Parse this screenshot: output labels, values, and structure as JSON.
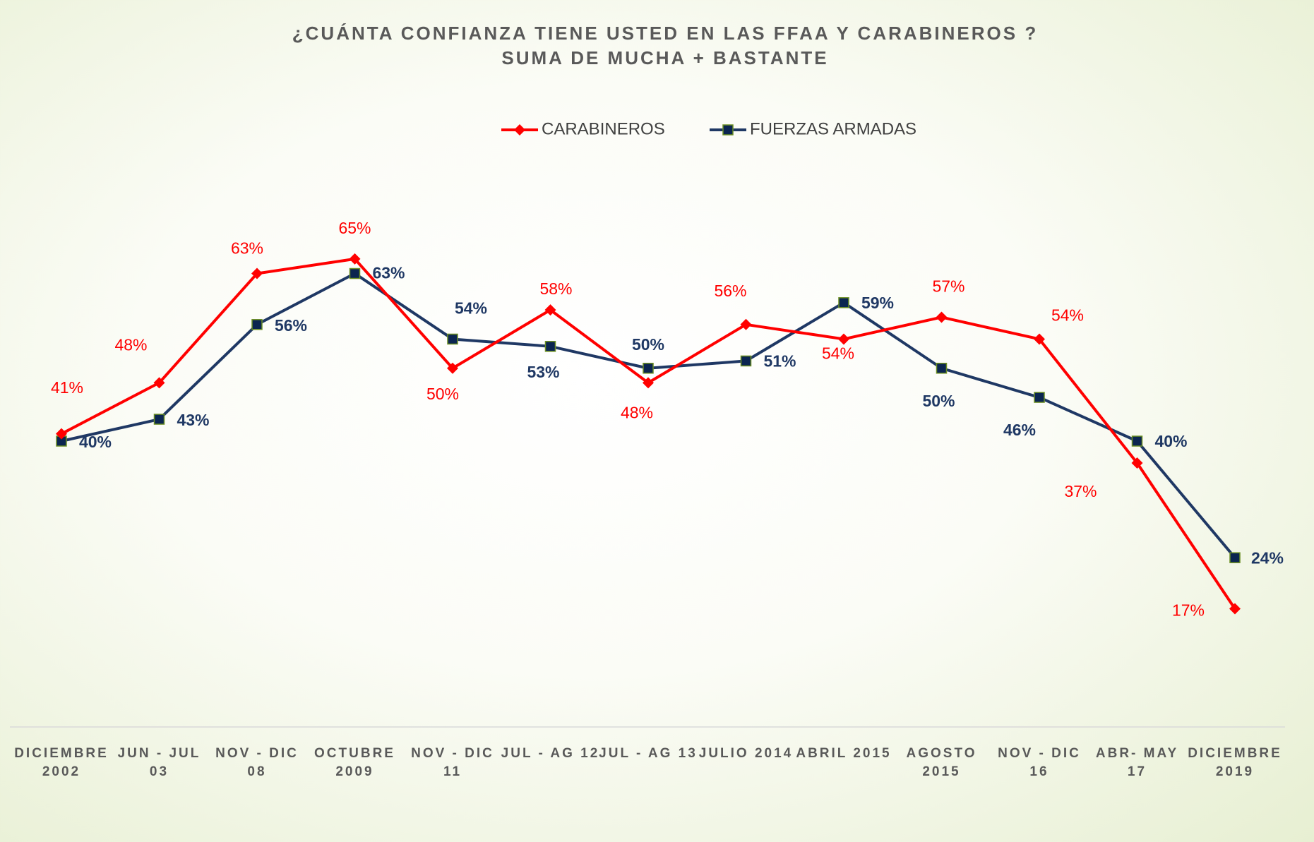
{
  "chart_data": {
    "type": "line",
    "title": "¿CUÁNTA CONFIANZA TIENE USTED EN LAS FFAA Y CARABINEROS ?",
    "subtitle": "SUMA DE MUCHA + BASTANTE",
    "categories": [
      "DICIEMBRE\n2002",
      "JUN - JUL\n03",
      "NOV - DIC\n08",
      "OCTUBRE\n2009",
      "NOV - DIC\n11",
      "JUL - AG 12",
      "JUL - AG 13",
      "JULIO 2014",
      "ABRIL 2015",
      "AGOSTO\n2015",
      "NOV - DIC\n16",
      "ABR- MAY\n17",
      "DICIEMBRE\n2019"
    ],
    "series": [
      {
        "name": "CARABINEROS",
        "color": "#ff0000",
        "values": [
          41,
          48,
          63,
          65,
          50,
          58,
          48,
          56,
          54,
          57,
          54,
          37,
          17
        ],
        "value_labels": [
          "41%",
          "48%",
          "63%",
          "65%",
          "50%",
          "58%",
          "48%",
          "56%",
          "54%",
          "57%",
          "54%",
          "37%",
          "17%"
        ]
      },
      {
        "name": "FUERZAS ARMADAS",
        "color": "#1f3864",
        "values": [
          40,
          43,
          56,
          63,
          54,
          53,
          50,
          51,
          59,
          50,
          46,
          40,
          24
        ],
        "value_labels": [
          "40%",
          "43%",
          "56%",
          "63%",
          "54%",
          "53%",
          "50%",
          "51%",
          "59%",
          "50%",
          "46%",
          "40%",
          "24%"
        ]
      }
    ],
    "ylim": [
      0,
      80
    ],
    "legend": "top"
  }
}
